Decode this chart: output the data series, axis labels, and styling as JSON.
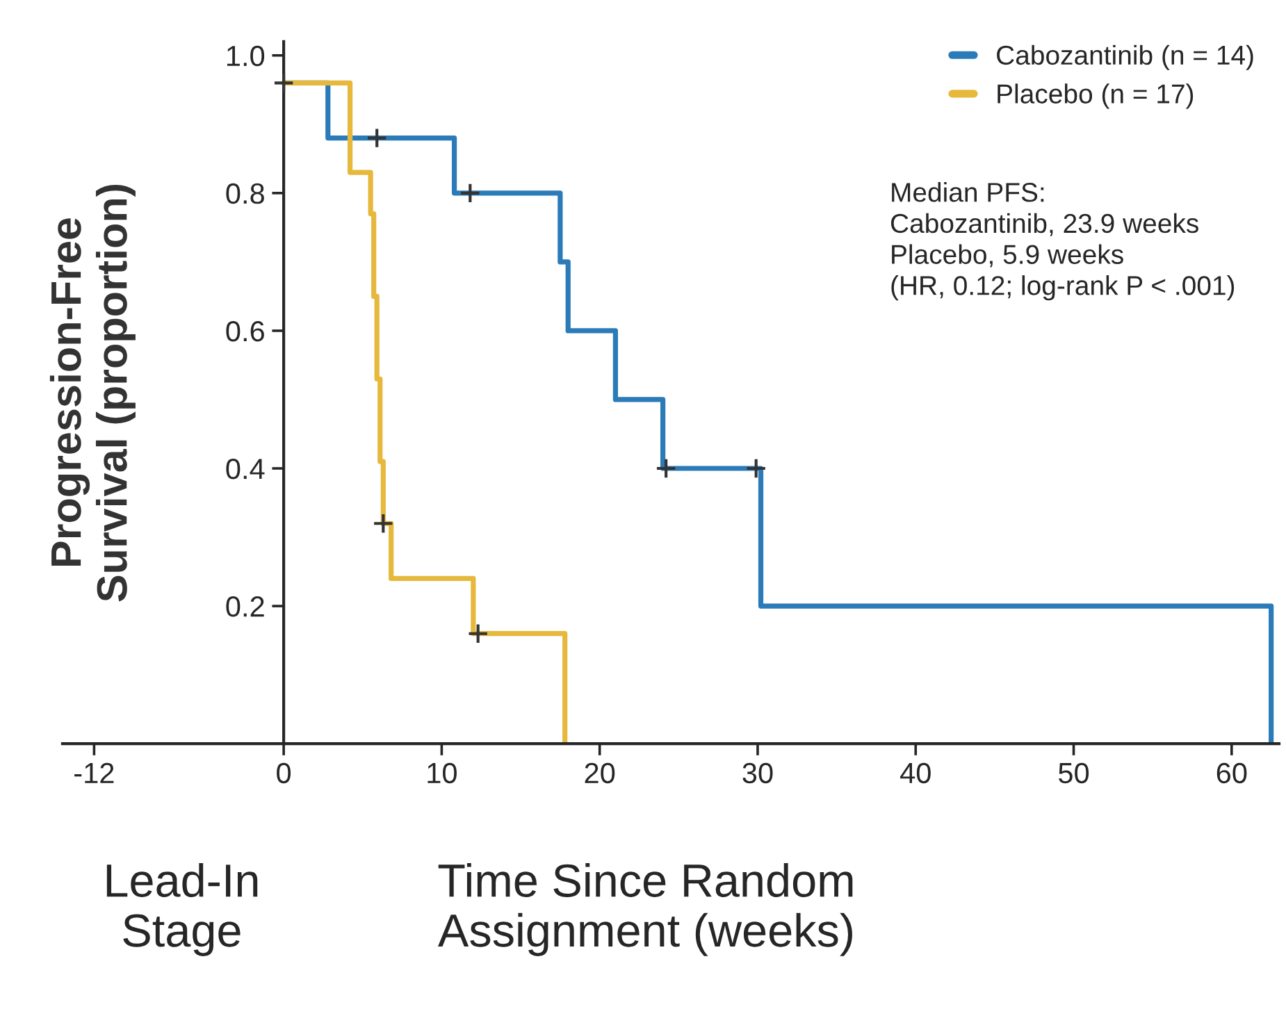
{
  "chart_data": {
    "type": "step",
    "xlabel": "Time Since Random\nAssignment (weeks)",
    "ylabel": "Progression-Free\nSurvival (proportion)",
    "annotations": [
      "Lead-In\nStage",
      "Median PFS:\nCabozantinib, 23.9 weeks\nPlacebo, 5.9 weeks\n(HR, 0.12; log-rank P < .001)"
    ],
    "xlim": [
      -14,
      63
    ],
    "ylim": [
      0,
      1.02
    ],
    "xticks": [
      -12,
      0,
      10,
      20,
      30,
      40,
      50,
      60
    ],
    "yticks": [
      0.2,
      0.4,
      0.6,
      0.8,
      {
        "value": 1.0,
        "label": "1.0"
      }
    ],
    "legend": "top right",
    "series": [
      {
        "name": "Cabozantinib (n = 14)",
        "color": "#2b7bb9",
        "x": [
          0,
          2.8,
          10.8,
          17.5,
          18,
          21,
          24,
          30.2,
          62.5
        ],
        "values": [
          0.96,
          0.88,
          0.8,
          0.7,
          0.6,
          0.5,
          0.4,
          0.2,
          0
        ]
      },
      {
        "name": "Placebo (n = 17)",
        "color": "#e6b83c",
        "x": [
          0,
          4.2,
          5.5,
          5.7,
          5.9,
          6.1,
          6.3,
          6.8,
          12,
          17.8
        ],
        "values": [
          0.96,
          0.83,
          0.77,
          0.65,
          0.53,
          0.41,
          0.32,
          0.24,
          0.16,
          0
        ]
      },
      {
        "type": "scatter",
        "marker": "cross",
        "color": "#333333",
        "x": [
          0,
          5.9,
          11.8,
          24.2,
          29.9
        ],
        "values": [
          0.96,
          0.88,
          0.8,
          0.4,
          0.4
        ]
      },
      {
        "type": "scatter",
        "marker": "cross",
        "color": "#333333",
        "x": [
          6.3,
          12.3
        ],
        "values": [
          0.32,
          0.16
        ]
      }
    ]
  }
}
